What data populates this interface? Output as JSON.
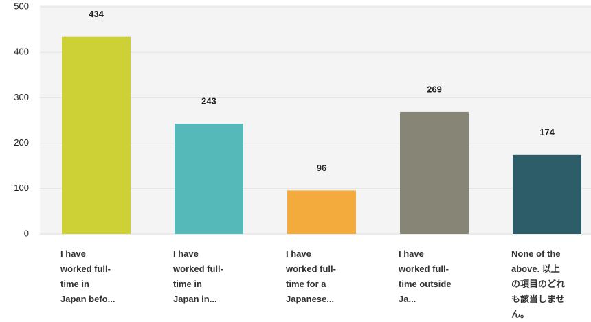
{
  "chart_data": {
    "type": "bar",
    "categories": [
      "I have worked full-time in Japan befo...",
      "I have worked full-time in Japan in...",
      "I have worked full-time for a Japanese...",
      "I have worked full-time outside Ja...",
      "None of the above. 以上の項目のどれも該当しません。"
    ],
    "values": [
      434,
      243,
      96,
      269,
      174
    ],
    "colors": [
      "#cdd135",
      "#56b9b9",
      "#f2ab3c",
      "#878676",
      "#2d5d69"
    ],
    "ylim": [
      0,
      500
    ],
    "yticks": [
      0,
      100,
      200,
      300,
      400,
      500
    ],
    "grid": true
  }
}
